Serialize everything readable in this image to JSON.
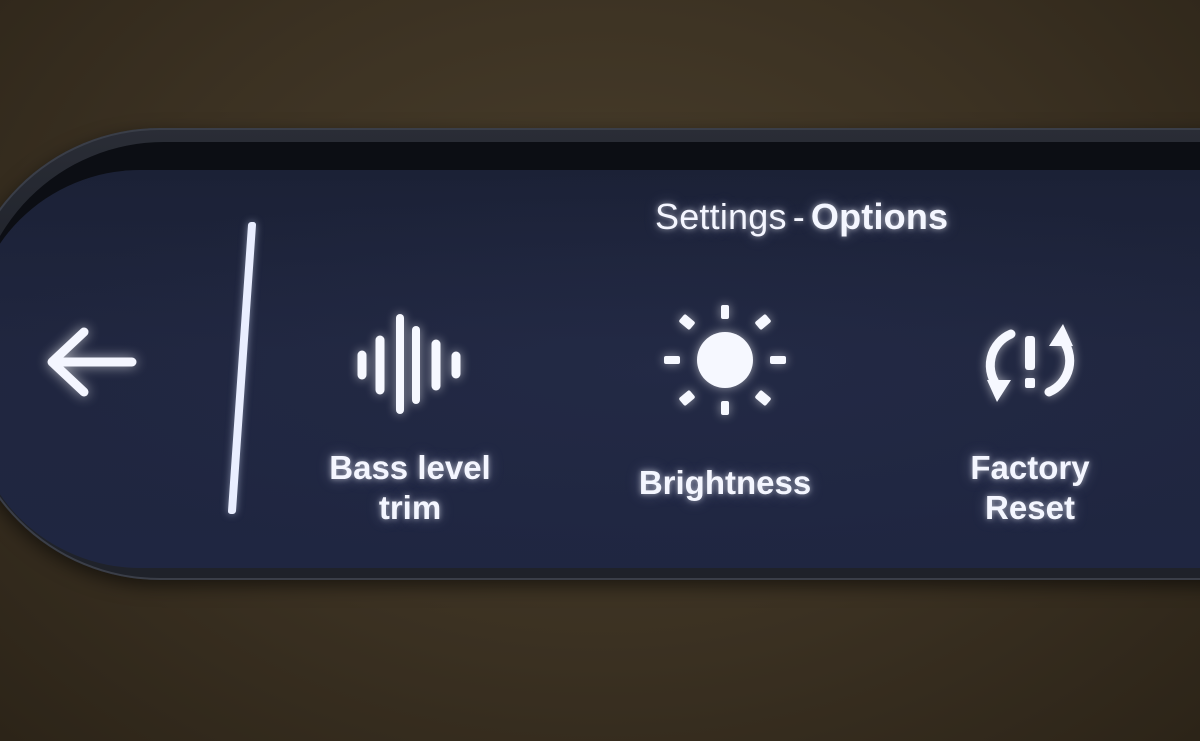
{
  "header": {
    "title_prefix": "Settings",
    "title_separator": "-",
    "title_suffix": "Options"
  },
  "nav": {
    "back_icon": "arrow-left-icon"
  },
  "options": [
    {
      "id": "bass",
      "label": "Bass level\ntrim",
      "icon": "waveform-icon"
    },
    {
      "id": "brightness",
      "label": "Brightness",
      "icon": "sun-icon"
    },
    {
      "id": "reset",
      "label": "Factory\nReset",
      "icon": "reset-warning-icon"
    }
  ],
  "colors": {
    "screen_bg": "#1f2641",
    "text_glow": "#f4f6ff",
    "bezel": "#1d2028"
  }
}
